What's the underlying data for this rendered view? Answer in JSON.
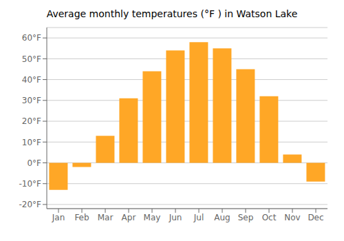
{
  "chart_data": {
    "type": "bar",
    "title": "Average monthly temperatures (°F ) in Watson Lake",
    "categories": [
      "Jan",
      "Feb",
      "Mar",
      "Apr",
      "May",
      "Jun",
      "Jul",
      "Aug",
      "Sep",
      "Oct",
      "Nov",
      "Dec"
    ],
    "values": [
      -13,
      -2,
      13,
      31,
      44,
      54,
      58,
      55,
      45,
      32,
      4,
      -9
    ],
    "color": "#FFA726",
    "ylim": [
      -22,
      65
    ],
    "yticks": [
      {
        "value": -20,
        "label": "-20°F"
      },
      {
        "value": -10,
        "label": "-10°F"
      },
      {
        "value": 0,
        "label": "0°F"
      },
      {
        "value": 10,
        "label": "10°F"
      },
      {
        "value": 20,
        "label": "20°F"
      },
      {
        "value": 30,
        "label": "30°F"
      },
      {
        "value": 40,
        "label": "40°F"
      },
      {
        "value": 50,
        "label": "50°F"
      },
      {
        "value": 60,
        "label": "60°F"
      }
    ],
    "grid": true
  }
}
